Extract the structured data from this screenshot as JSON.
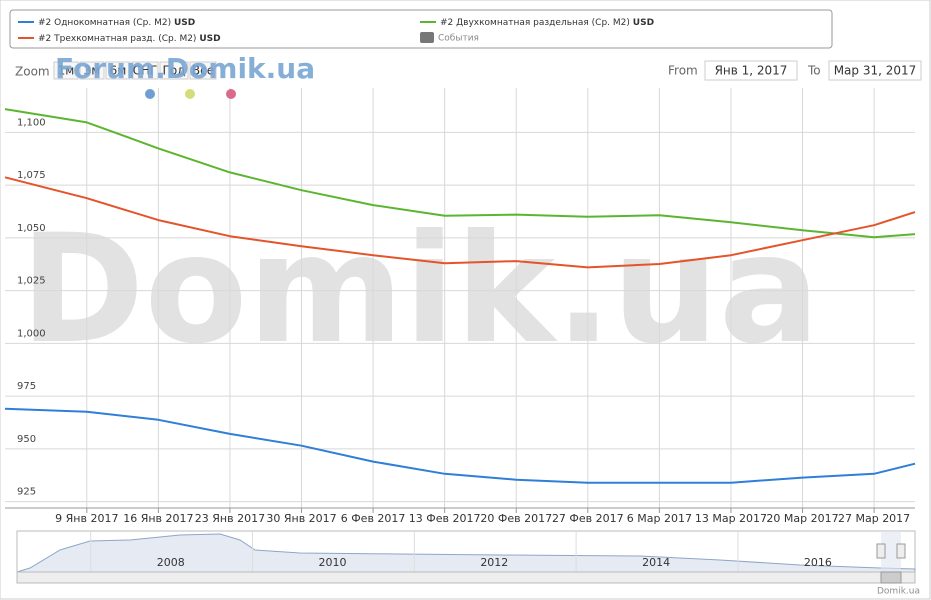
{
  "chart_data": {
    "type": "line",
    "legend": {
      "currency": "USD",
      "events_label": "События"
    },
    "range_selector": {
      "zoom_label": "Zoom",
      "buttons": [
        "1м",
        "3м",
        "6м",
        "СНГ",
        "Год",
        "Все"
      ],
      "from_label": "From",
      "from_value": "Янв 1, 2017",
      "to_label": "To",
      "to_value": "Мар 31, 2017"
    },
    "watermark": "Domik.ua",
    "forum_watermark": "Forum.Domik.ua",
    "credit": "Domik.ua",
    "x": [
      "2017-01-01",
      "2017-01-09",
      "2017-01-16",
      "2017-01-23",
      "2017-01-30",
      "2017-02-06",
      "2017-02-13",
      "2017-02-20",
      "2017-02-27",
      "2017-03-06",
      "2017-03-13",
      "2017-03-20",
      "2017-03-27",
      "2017-03-31"
    ],
    "xlim": [
      "2017-01-01",
      "2017-03-31"
    ],
    "xticks": [
      {
        "value": "2017-01-09",
        "label": "9 Янв 2017"
      },
      {
        "value": "2017-01-16",
        "label": "16 Янв 2017"
      },
      {
        "value": "2017-01-23",
        "label": "23 Янв 2017"
      },
      {
        "value": "2017-01-30",
        "label": "30 Янв 2017"
      },
      {
        "value": "2017-02-06",
        "label": "6 Фев 2017"
      },
      {
        "value": "2017-02-13",
        "label": "13 Фев 2017"
      },
      {
        "value": "2017-02-20",
        "label": "20 Фев 2017"
      },
      {
        "value": "2017-02-27",
        "label": "27 Фев 2017"
      },
      {
        "value": "2017-03-06",
        "label": "6 Мар 2017"
      },
      {
        "value": "2017-03-13",
        "label": "13 Мар 2017"
      },
      {
        "value": "2017-03-20",
        "label": "20 Мар 2017"
      },
      {
        "value": "2017-03-27",
        "label": "27 Мар 2017"
      }
    ],
    "ylim": [
      922,
      1121
    ],
    "yticks": [
      925,
      950,
      975,
      {
        "value": 1000,
        "label": "1,000"
      },
      {
        "value": 1025,
        "label": "1,025"
      },
      {
        "value": 1050,
        "label": "1,050"
      },
      {
        "value": 1075,
        "label": "1,075"
      },
      {
        "value": 1100,
        "label": "1,100"
      }
    ],
    "grid": true,
    "series": [
      {
        "name": "#2 Однокомнатная (Ср. М2)",
        "color": "#2f7ed8",
        "values": [
          969,
          967.6,
          963.8,
          957.1,
          951.5,
          944,
          938.2,
          935.4,
          934,
          934,
          934,
          936.4,
          938.2,
          943
        ]
      },
      {
        "name": "#2 Двухкомнатная раздельная (Ср. М2)",
        "color": "#5cb531",
        "values": [
          1111,
          1104.7,
          1092.4,
          1081,
          1072.6,
          1065.5,
          1060.5,
          1061,
          1060,
          1060.7,
          1057.4,
          1053.6,
          1050.3,
          1051.8
        ]
      },
      {
        "name": "#2 Трехкомнатная разд. (Ср. М2)",
        "color": "#e4542a",
        "values": [
          1078.7,
          1068.8,
          1058.4,
          1050.8,
          1046,
          1041.8,
          1038,
          1039,
          1036,
          1037.6,
          1041.8,
          1048.9,
          1056,
          1062.2
        ]
      }
    ],
    "navigator": {
      "xlim": [
        2006.1,
        2017.2
      ],
      "xticks": [
        2008,
        2010,
        2012,
        2014,
        2016
      ]
    }
  }
}
